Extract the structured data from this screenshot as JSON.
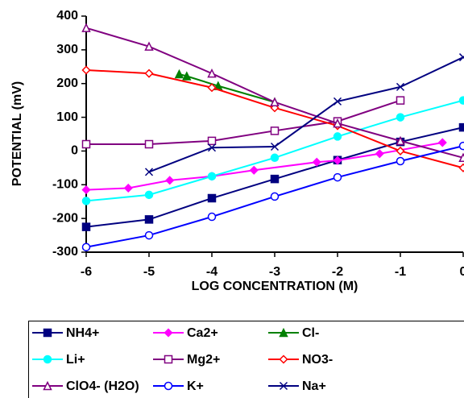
{
  "chart_data": {
    "type": "line",
    "xlabel": "LOG CONCENTRATION (M)",
    "ylabel": "POTENTIAL (mV)",
    "xlim": [
      -6,
      0
    ],
    "ylim": [
      -300,
      400
    ],
    "xticks": [
      -6,
      -5,
      -4,
      -3,
      -2,
      -1,
      0
    ],
    "yticks": [
      -300,
      -200,
      -100,
      0,
      100,
      200,
      300,
      400
    ],
    "grid": false,
    "series": [
      {
        "name": "NH4+",
        "color": "#000080",
        "marker": "square",
        "filled": true,
        "x": [
          -6,
          -5,
          -4,
          -3,
          -2,
          -1,
          0
        ],
        "values": [
          -225,
          -203,
          -140,
          -83,
          -27,
          27,
          70
        ]
      },
      {
        "name": "Ca2+",
        "color": "#ff00ff",
        "marker": "diamond",
        "filled": true,
        "x": [
          -6,
          -5.33,
          -4.67,
          -4,
          -3.33,
          -2.33,
          -2,
          -1.33,
          -0.33
        ],
        "values": [
          -115,
          -110,
          -87,
          -75,
          -57,
          -33,
          -28,
          -8,
          25
        ]
      },
      {
        "name": "Cl-",
        "color": "#008000",
        "marker": "triangle",
        "filled": true,
        "x": [
          -4.52,
          -4.4,
          -3.9,
          -3
        ],
        "values": [
          228,
          222,
          193,
          145
        ]
      },
      {
        "name": "Li+",
        "color": "#00ffff",
        "marker": "circle",
        "filled": true,
        "x": [
          -6,
          -5,
          -4,
          -3,
          -2,
          -1,
          0
        ],
        "values": [
          -148,
          -130,
          -75,
          -20,
          43,
          100,
          150
        ]
      },
      {
        "name": "Mg2+",
        "color": "#800080",
        "marker": "square",
        "filled": false,
        "x": [
          -6,
          -5,
          -4,
          -3,
          -2,
          -1
        ],
        "values": [
          20,
          20,
          30,
          60,
          88,
          150
        ]
      },
      {
        "name": "NO3-",
        "color": "#ff0000",
        "marker": "diamond",
        "filled": false,
        "x": [
          -6,
          -5,
          -4,
          -3,
          -2,
          -1,
          0
        ],
        "values": [
          240,
          230,
          188,
          128,
          75,
          0,
          -50
        ]
      },
      {
        "name": "ClO4- (H2O)",
        "color": "#800080",
        "marker": "triangle",
        "filled": false,
        "x": [
          -6,
          -5,
          -4,
          -3,
          -2,
          -1,
          0
        ],
        "values": [
          365,
          310,
          230,
          145,
          82,
          30,
          -20
        ]
      },
      {
        "name": "K+",
        "color": "#0000ff",
        "marker": "circle",
        "filled": false,
        "x": [
          -6,
          -5,
          -4,
          -3,
          -2,
          -1,
          0
        ],
        "values": [
          -285,
          -250,
          -195,
          -135,
          -78,
          -30,
          15
        ]
      },
      {
        "name": "Na+",
        "color": "#000080",
        "marker": "cross",
        "filled": false,
        "x": [
          -5,
          -4,
          -3,
          -2,
          -1,
          0
        ],
        "values": [
          -62,
          10,
          13,
          147,
          190,
          278
        ]
      }
    ]
  }
}
